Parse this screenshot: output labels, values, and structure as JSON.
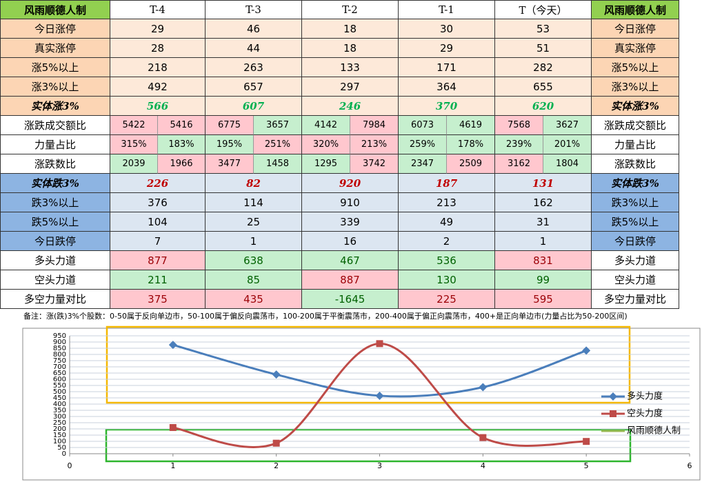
{
  "table": {
    "header": [
      "风雨顺德人制",
      "T-4",
      "T-3",
      "T-2",
      "T-1",
      "T（今天）",
      "风雨顺德人制"
    ],
    "rows": [
      {
        "label": "今日涨停",
        "style": "up",
        "cells": [
          "29",
          "46",
          "18",
          "30",
          "53"
        ]
      },
      {
        "label": "真实涨停",
        "style": "up",
        "cells": [
          "28",
          "44",
          "18",
          "29",
          "51"
        ]
      },
      {
        "label": "涨5%以上",
        "style": "up",
        "cells": [
          "218",
          "263",
          "133",
          "171",
          "282"
        ]
      },
      {
        "label": "涨3%以上",
        "style": "up",
        "cells": [
          "492",
          "657",
          "297",
          "364",
          "655"
        ]
      },
      {
        "label": "实体涨3%",
        "style": "up-strong",
        "cells": [
          "566",
          "607",
          "246",
          "370",
          "620"
        ]
      },
      {
        "label": "涨跌成交额比",
        "style": "ratio",
        "cells": [
          [
            "5422",
            "5416"
          ],
          [
            "6775",
            "3657"
          ],
          [
            "4142",
            "7984"
          ],
          [
            "6073",
            "4619"
          ],
          [
            "7568",
            "3627"
          ]
        ],
        "tones": [
          [
            "pink",
            "pink"
          ],
          [
            "pink",
            "green"
          ],
          [
            "green",
            "pink"
          ],
          [
            "green",
            "green"
          ],
          [
            "pink",
            "green"
          ]
        ]
      },
      {
        "label": "力量占比",
        "style": "ratio",
        "cells": [
          [
            "315%",
            "183%"
          ],
          [
            "195%",
            "251%"
          ],
          [
            "320%",
            "213%"
          ],
          [
            "259%",
            "178%"
          ],
          [
            "239%",
            "201%"
          ]
        ],
        "tones": [
          [
            "pink",
            "green"
          ],
          [
            "green",
            "pink"
          ],
          [
            "pink",
            "pink"
          ],
          [
            "green",
            "green"
          ],
          [
            "green",
            "green"
          ]
        ]
      },
      {
        "label": "涨跌数比",
        "style": "ratio",
        "cells": [
          [
            "2039",
            "1966"
          ],
          [
            "3477",
            "1458"
          ],
          [
            "1295",
            "3742"
          ],
          [
            "2347",
            "2509"
          ],
          [
            "3162",
            "1804"
          ]
        ],
        "tones": [
          [
            "green",
            "pink"
          ],
          [
            "pink",
            "green"
          ],
          [
            "green",
            "pink"
          ],
          [
            "green",
            "pink"
          ],
          [
            "pink",
            "green"
          ]
        ]
      },
      {
        "label": "实体跌3%",
        "style": "down-strong",
        "cells": [
          "226",
          "82",
          "920",
          "187",
          "131"
        ]
      },
      {
        "label": "跌3%以上",
        "style": "down",
        "cells": [
          "376",
          "114",
          "910",
          "213",
          "162"
        ]
      },
      {
        "label": "跌5%以上",
        "style": "down",
        "cells": [
          "104",
          "25",
          "339",
          "49",
          "31"
        ]
      },
      {
        "label": "今日跌停",
        "style": "down",
        "cells": [
          "7",
          "1",
          "16",
          "2",
          "1"
        ]
      },
      {
        "label": "多头力道",
        "style": "power",
        "cells": [
          "877",
          "638",
          "467",
          "536",
          "831"
        ],
        "tones": [
          "pink",
          "green",
          "green",
          "green",
          "pink"
        ]
      },
      {
        "label": "空头力道",
        "style": "power",
        "cells": [
          "211",
          "85",
          "887",
          "130",
          "99"
        ],
        "tones": [
          "green",
          "green",
          "pink",
          "green",
          "green"
        ]
      },
      {
        "label": "多空力量对比",
        "style": "power",
        "cells": [
          "375",
          "435",
          "-1645",
          "225",
          "595"
        ],
        "tones": [
          "pink",
          "pink",
          "green",
          "pink",
          "pink"
        ]
      }
    ],
    "note": "备注：涨(跌)3%个股数：0-50属于反向单边市，50-100属于偏反向震荡市，100-200属于平衡震荡市，200-400属于偏正向震荡市，400+是正向单边市(力量占比为50-200区间)"
  },
  "chart_data": {
    "type": "line",
    "x": [
      1,
      2,
      3,
      4,
      5
    ],
    "xlim": [
      0,
      6
    ],
    "xticks": [
      0,
      1,
      2,
      3,
      4,
      5,
      6
    ],
    "ylim": [
      0,
      950
    ],
    "yticks": [
      0,
      50,
      100,
      150,
      200,
      250,
      300,
      350,
      400,
      450,
      500,
      550,
      600,
      650,
      700,
      750,
      800,
      850,
      900,
      950
    ],
    "grid": true,
    "series": [
      {
        "name": "多头力度",
        "color": "#4a7ebb",
        "marker": "diamond",
        "values": [
          877,
          638,
          467,
          536,
          831
        ]
      },
      {
        "name": "空头力度",
        "color": "#be4b48",
        "marker": "square",
        "values": [
          211,
          85,
          887,
          130,
          99
        ]
      },
      {
        "name": "风雨顺德人制",
        "color": "#98b954"
      }
    ]
  }
}
